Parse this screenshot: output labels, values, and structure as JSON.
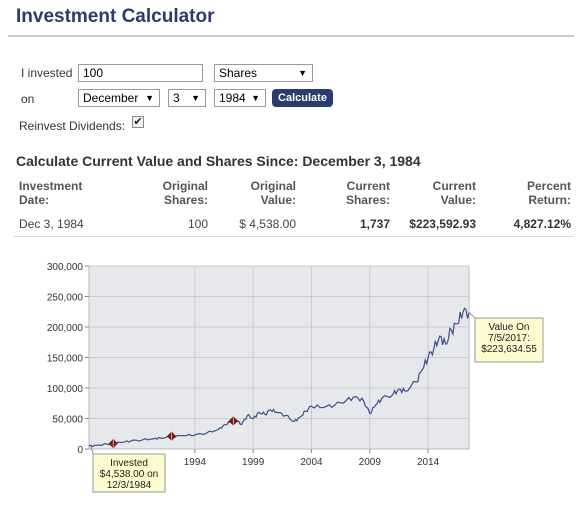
{
  "page": {
    "title": "Investment Calculator"
  },
  "form": {
    "invested_label": "I invested",
    "amount_value": "100",
    "unit_value": "Shares",
    "on_label": "on",
    "month_value": "December",
    "day_value": "3",
    "year_value": "1984",
    "calculate_label": "Calculate",
    "reinvest_label": "Reinvest Dividends:",
    "reinvest_checked": "✔"
  },
  "results": {
    "heading": "Calculate Current Value and Shares Since: December 3, 1984",
    "headers": [
      [
        "Investment",
        "Date:"
      ],
      [
        "Original",
        "Shares:"
      ],
      [
        "Original",
        "Value:"
      ],
      [
        "Current",
        "Shares:"
      ],
      [
        "Current",
        "Value:"
      ],
      [
        "Percent",
        "Return:"
      ]
    ],
    "row": [
      "Dec 3, 1984",
      "100",
      "$ 4,538.00",
      "1,737",
      "$223,592.93",
      "4,827.12%"
    ]
  },
  "chart_data": {
    "type": "line",
    "title": "",
    "xlabel": "",
    "ylabel": "",
    "xlim": [
      1984.92,
      2017.51
    ],
    "ylim": [
      0,
      300000
    ],
    "y_ticks": [
      0,
      50000,
      100000,
      150000,
      200000,
      250000,
      300000
    ],
    "y_tick_labels": [
      "0",
      "50,000",
      "100,000",
      "150,000",
      "200,000",
      "250,000",
      "300,000"
    ],
    "x_ticks": [
      1994,
      1999,
      2004,
      2009,
      2014
    ],
    "x_tick_labels": [
      "1994",
      "1999",
      "2004",
      "2009",
      "2014"
    ],
    "grid": true,
    "colors": {
      "line": "#3d4f8a",
      "plot_bg": "#e6e8eb",
      "marker": "#8b1a1a",
      "callout_bg": "#fefad0"
    },
    "series": [
      {
        "x": [
          1984.92,
          1985.5,
          1986.5,
          1987.0,
          1987.8,
          1988.5,
          1989.5,
          1990.5,
          1991.0,
          1992.0,
          1993.0,
          1994.0,
          1995.0,
          1996.0,
          1996.6,
          1997.0,
          1997.5,
          1998.0,
          1998.5,
          1999.0,
          1999.5,
          2000.0,
          2000.5,
          2001.0,
          2001.8,
          2002.5,
          2003.0,
          2003.5,
          2004.0,
          2005.0,
          2006.0,
          2007.0,
          2007.8,
          2008.5,
          2009.0,
          2009.5,
          2010.0,
          2011.0,
          2011.5,
          2012.0,
          2013.0,
          2013.5,
          2014.0,
          2014.5,
          2015.0,
          2015.5,
          2016.0,
          2016.5,
          2017.0,
          2017.51
        ],
        "y": [
          4538,
          6000,
          8000,
          9000,
          11000,
          13000,
          15000,
          17000,
          18000,
          20000,
          22000,
          23000,
          26000,
          32000,
          40000,
          44000,
          48000,
          40000,
          55000,
          50000,
          60000,
          57000,
          64000,
          60000,
          55000,
          45000,
          52000,
          62000,
          70000,
          68000,
          72000,
          80000,
          86000,
          78000,
          58000,
          72000,
          82000,
          90000,
          98000,
          95000,
          110000,
          130000,
          150000,
          165000,
          185000,
          172000,
          195000,
          205000,
          225000,
          223634.55
        ]
      }
    ],
    "markers": [
      {
        "x": 1987.0,
        "y": 9000
      },
      {
        "x": 1992.0,
        "y": 21000
      },
      {
        "x": 1997.3,
        "y": 46000
      }
    ],
    "annotations": {
      "start": [
        "Invested",
        "$4,538.00 on",
        "12/3/1984"
      ],
      "end": [
        "Value On",
        "7/5/2017:",
        "$223,634.55"
      ]
    }
  }
}
